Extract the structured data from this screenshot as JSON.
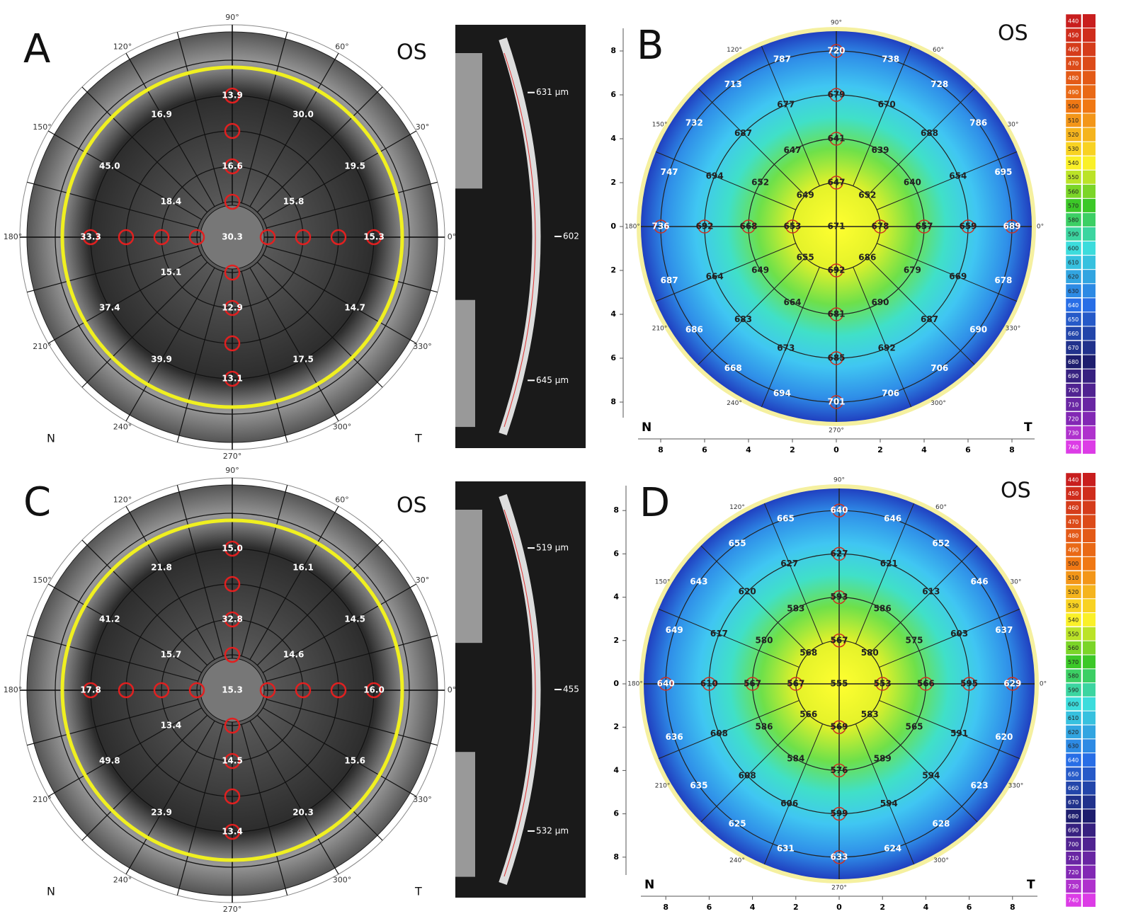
{
  "panels": [
    {
      "letter": "A",
      "eye": "OS",
      "angles": [
        "90°",
        "60°",
        "30°",
        "0°",
        "330°",
        "300°",
        "270°",
        "240°",
        "210°",
        "180°",
        "150°",
        "120°"
      ],
      "sides": [
        "N",
        "T"
      ],
      "values": [
        "30.3",
        "15.8",
        "18.4",
        "15.1",
        "19.5",
        "30.0",
        "16.9",
        "45.0",
        "37.4",
        "39.9",
        "17.5",
        "14.7",
        "15.3",
        "13.9",
        "16.6",
        "12.9",
        "13.1",
        "33.3"
      ],
      "scan_labels": [
        "631 µm",
        "602",
        "645 µm"
      ]
    },
    {
      "letter": "B",
      "eye": "OS",
      "angles": [
        "90°",
        "60°",
        "30°",
        "0°",
        "330°",
        "300°",
        "270°",
        "240°",
        "210°",
        "180°",
        "150°",
        "120°"
      ],
      "sides": [
        "N",
        "T"
      ],
      "center": 671,
      "rings": [
        [
          678,
          652,
          647,
          649,
          653,
          655,
          692,
          686
        ],
        [
          657,
          640,
          639,
          641,
          647,
          652,
          668,
          649,
          664,
          681,
          690,
          679
        ],
        [
          659,
          654,
          688,
          670,
          679,
          677,
          687,
          694,
          692,
          664,
          683,
          673,
          685,
          692,
          687,
          669
        ],
        [
          689,
          695,
          786,
          728,
          738,
          720,
          787,
          713,
          732,
          747,
          736,
          687,
          686,
          668,
          694,
          701,
          706,
          706,
          690,
          678
        ]
      ],
      "xticks": [
        {
          "value": -8,
          "label": "8"
        },
        {
          "value": -6,
          "label": "6"
        },
        {
          "value": -4,
          "label": "4"
        },
        {
          "value": -2,
          "label": "2"
        },
        0,
        2,
        4,
        6,
        8
      ],
      "yticks": [
        {
          "value": -8,
          "label": "8"
        },
        {
          "value": -6,
          "label": "6"
        },
        {
          "value": -4,
          "label": "4"
        },
        {
          "value": -2,
          "label": "2"
        },
        0,
        2,
        4,
        6,
        8
      ],
      "scale": [
        440,
        450,
        460,
        470,
        480,
        490,
        500,
        510,
        520,
        530,
        540,
        550,
        560,
        570,
        580,
        590,
        600,
        610,
        620,
        630,
        640,
        650,
        660,
        670,
        680,
        690,
        700,
        710,
        720,
        730,
        740
      ]
    },
    {
      "letter": "C",
      "eye": "OS",
      "angles": [
        "90°",
        "60°",
        "30°",
        "0°",
        "330°",
        "300°",
        "270°",
        "240°",
        "210°",
        "180°",
        "150°",
        "120°"
      ],
      "sides": [
        "N",
        "T"
      ],
      "values": [
        "15.3",
        "14.6",
        "15.7",
        "13.4",
        "14.5",
        "16.1",
        "21.8",
        "41.2",
        "49.8",
        "23.9",
        "20.3",
        "15.6",
        "16.0",
        "15.0",
        "32.8",
        "14.5",
        "13.4",
        "17.8"
      ],
      "scan_labels": [
        "519 µm",
        "455",
        "532 µm"
      ]
    },
    {
      "letter": "D",
      "eye": "OS",
      "angles": [
        "90°",
        "60°",
        "30°",
        "0°",
        "330°",
        "300°",
        "270°",
        "240°",
        "210°",
        "180°",
        "150°",
        "120°"
      ],
      "sides": [
        "N",
        "T"
      ],
      "center": 555,
      "rings": [
        [
          553,
          580,
          567,
          568,
          567,
          566,
          569,
          583
        ],
        [
          566,
          575,
          586,
          593,
          583,
          580,
          567,
          586,
          584,
          576,
          589,
          565
        ],
        [
          595,
          603,
          613,
          621,
          627,
          627,
          620,
          617,
          610,
          608,
          608,
          606,
          599,
          594,
          594,
          591
        ],
        [
          629,
          637,
          646,
          652,
          646,
          640,
          665,
          655,
          643,
          649,
          640,
          636,
          635,
          625,
          631,
          633,
          624,
          628,
          623,
          620
        ]
      ],
      "xticks": [
        {
          "value": -8,
          "label": "8"
        },
        {
          "value": -6,
          "label": "6"
        },
        {
          "value": -4,
          "label": "4"
        },
        {
          "value": -2,
          "label": "2"
        },
        0,
        2,
        4,
        6,
        8
      ],
      "yticks": [
        {
          "value": -8,
          "label": "8"
        },
        {
          "value": -6,
          "label": "6"
        },
        {
          "value": -4,
          "label": "4"
        },
        {
          "value": -2,
          "label": "2"
        },
        0,
        2,
        4,
        6,
        8
      ],
      "scale": [
        440,
        450,
        460,
        470,
        480,
        490,
        500,
        510,
        520,
        530,
        540,
        550,
        560,
        570,
        580,
        590,
        600,
        610,
        620,
        630,
        640,
        650,
        660,
        670,
        680,
        690,
        700,
        710,
        720,
        730,
        740
      ]
    }
  ]
}
